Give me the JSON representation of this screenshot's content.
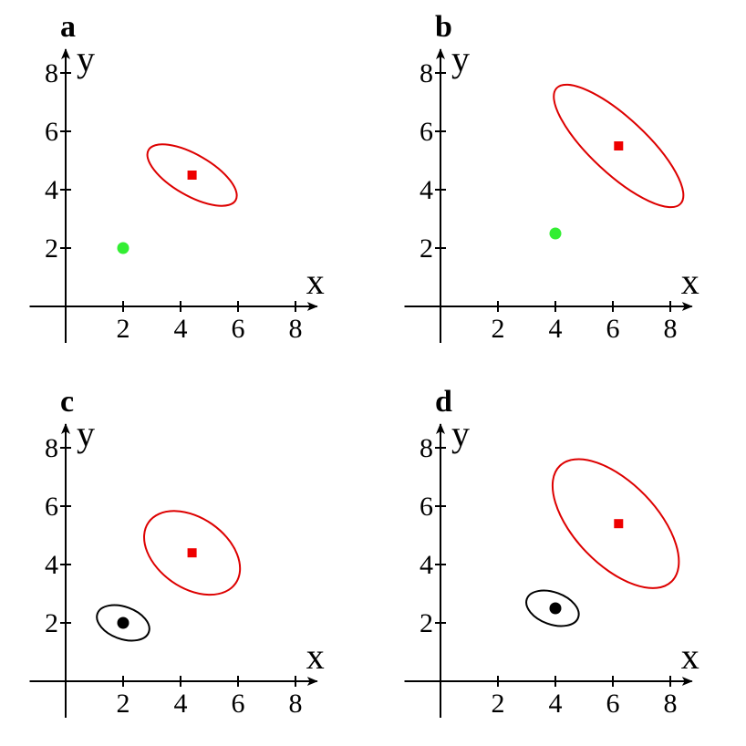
{
  "chart_data": [
    {
      "type": "scatter",
      "title": "a",
      "xlabel": "x",
      "ylabel": "y",
      "xlim": [
        -1,
        8.5
      ],
      "ylim": [
        -1,
        8.5
      ],
      "xticks": [
        "2",
        "4",
        "6",
        "8"
      ],
      "yticks": [
        "2",
        "4",
        "6",
        "8"
      ],
      "points": [
        {
          "name": "green-point",
          "x": 2.0,
          "y": 2.0,
          "color": "#33ee33",
          "shape": "circle"
        },
        {
          "name": "red-square",
          "x": 4.4,
          "y": 4.5,
          "color": "#ee0000",
          "shape": "square"
        }
      ],
      "ellipses": [
        {
          "name": "red-ellipse",
          "cx": 4.4,
          "cy": 4.5,
          "a": 1.75,
          "b": 0.7,
          "angle_deg": -30,
          "color": "#dd0000"
        }
      ]
    },
    {
      "type": "scatter",
      "title": "b",
      "xlabel": "x",
      "ylabel": "y",
      "xlim": [
        -1,
        8.5
      ],
      "ylim": [
        -1,
        8.5
      ],
      "xticks": [
        "2",
        "4",
        "6",
        "8"
      ],
      "yticks": [
        "2",
        "4",
        "6",
        "8"
      ],
      "points": [
        {
          "name": "green-point",
          "x": 4.0,
          "y": 2.5,
          "color": "#33ee33",
          "shape": "circle"
        },
        {
          "name": "red-square",
          "x": 6.2,
          "y": 5.5,
          "color": "#ee0000",
          "shape": "square"
        }
      ],
      "ellipses": [
        {
          "name": "red-ellipse",
          "cx": 6.2,
          "cy": 5.5,
          "a": 2.95,
          "b": 0.95,
          "angle_deg": -43,
          "color": "#dd0000"
        }
      ]
    },
    {
      "type": "scatter",
      "title": "c",
      "xlabel": "x",
      "ylabel": "y",
      "xlim": [
        -1,
        8.5
      ],
      "ylim": [
        -1,
        8.5
      ],
      "xticks": [
        "2",
        "4",
        "6",
        "8"
      ],
      "yticks": [
        "2",
        "4",
        "6",
        "8"
      ],
      "points": [
        {
          "name": "black-point",
          "x": 2.0,
          "y": 2.0,
          "color": "#000000",
          "shape": "circle"
        },
        {
          "name": "red-square",
          "x": 4.4,
          "y": 4.4,
          "color": "#ee0000",
          "shape": "square"
        }
      ],
      "ellipses": [
        {
          "name": "black-ellipse",
          "cx": 2.0,
          "cy": 2.0,
          "a": 0.95,
          "b": 0.55,
          "angle_deg": -20,
          "color": "#000000"
        },
        {
          "name": "red-ellipse",
          "cx": 4.4,
          "cy": 4.4,
          "a": 1.85,
          "b": 1.2,
          "angle_deg": -35,
          "color": "#dd0000"
        }
      ]
    },
    {
      "type": "scatter",
      "title": "d",
      "xlabel": "x",
      "ylabel": "y",
      "xlim": [
        -1,
        8.5
      ],
      "ylim": [
        -1,
        8.5
      ],
      "xticks": [
        "2",
        "4",
        "6",
        "8"
      ],
      "yticks": [
        "2",
        "4",
        "6",
        "8"
      ],
      "points": [
        {
          "name": "black-point",
          "x": 4.0,
          "y": 2.5,
          "color": "#000000",
          "shape": "circle"
        },
        {
          "name": "red-square",
          "x": 6.2,
          "y": 5.4,
          "color": "#ee0000",
          "shape": "square"
        }
      ],
      "ellipses": [
        {
          "name": "black-ellipse",
          "cx": 3.9,
          "cy": 2.5,
          "a": 0.95,
          "b": 0.55,
          "angle_deg": -20,
          "color": "#000000"
        },
        {
          "name": "red-ellipse",
          "cx": 6.1,
          "cy": 5.4,
          "a": 2.8,
          "b": 1.4,
          "angle_deg": -46,
          "color": "#dd0000"
        }
      ]
    }
  ]
}
